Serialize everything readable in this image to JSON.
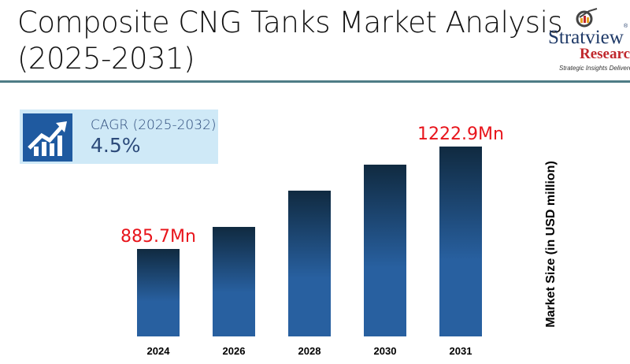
{
  "chart_data": {
    "type": "bar",
    "title": "Composite CNG Tanks Market Analysis (2025-2031)",
    "categories": [
      "2024",
      "2026",
      "2028",
      "2030",
      "2031"
    ],
    "values": [
      885.7,
      958.3,
      1077.7,
      1163.3,
      1222.9
    ],
    "data_labels": [
      "885.7Mn",
      "",
      "",
      "",
      "1222.9Mn"
    ],
    "xlabel": "",
    "ylabel": "Market Size (in USD million)",
    "grid": false,
    "bar_gradient": [
      "#102a40",
      "#2860a0"
    ],
    "label_color": "#e8141b"
  },
  "cagr": {
    "label": "CAGR (2025-2032)",
    "value": "4.5%",
    "icon": "growth-chart-icon"
  },
  "logo": {
    "name": "Stratview",
    "sub": "Research",
    "tagline": "Strategic Insights Delivered"
  }
}
